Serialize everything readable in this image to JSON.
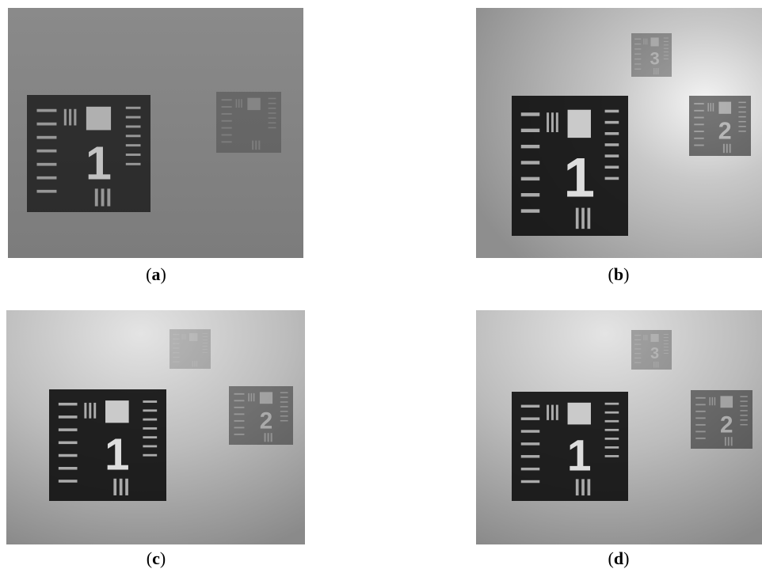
{
  "panels": [
    {
      "caption": [
        "(",
        "a",
        ")"
      ],
      "targets": [
        "1"
      ]
    },
    {
      "caption": [
        "(",
        "b",
        ")"
      ],
      "targets": [
        "1",
        "2",
        "3"
      ]
    },
    {
      "caption": [
        "(",
        "c",
        ")"
      ],
      "targets": [
        "1",
        "2"
      ]
    },
    {
      "caption": [
        "(",
        "d",
        ")"
      ],
      "targets": [
        "1",
        "2",
        "3"
      ]
    }
  ]
}
